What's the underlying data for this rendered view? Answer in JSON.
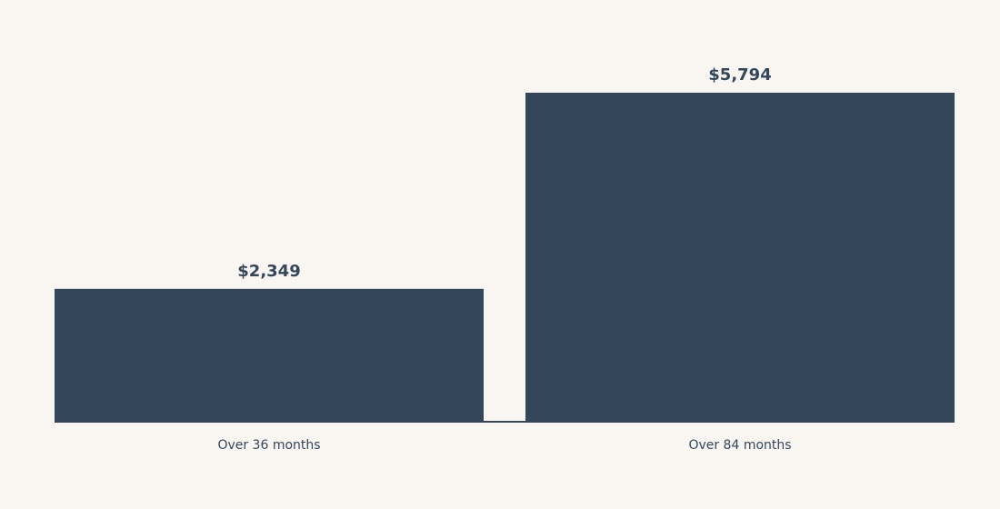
{
  "colors": {
    "background": "#f9f6f2",
    "bar": "#34475a",
    "text": "#34465a"
  },
  "chart_data": {
    "type": "bar",
    "categories": [
      "Over 36 months",
      "Over 84 months"
    ],
    "values": [
      2349,
      5794
    ],
    "value_labels": [
      "$2,349",
      "$5,794"
    ],
    "title": "",
    "xlabel": "",
    "ylabel": "",
    "ylim": [
      0,
      5794
    ],
    "grid": false,
    "legend": "none"
  }
}
